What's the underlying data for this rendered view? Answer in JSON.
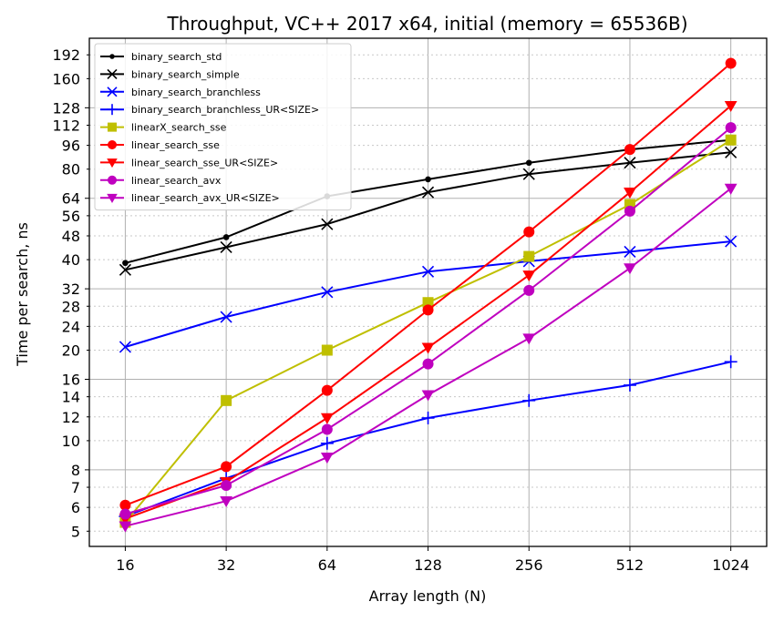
{
  "chart_data": {
    "type": "line",
    "title": "Throughput, VC++ 2017 x64, initial (memory = 65536B)",
    "xlabel": "Array length (N)",
    "ylabel": "Time per search, ns",
    "x_scale": "log2",
    "y_scale": "log",
    "grid": true,
    "legend_position": "top-left",
    "x": [
      16,
      32,
      64,
      128,
      256,
      512,
      1024
    ],
    "x_ticks": [
      "16",
      "32",
      "64",
      "128",
      "256",
      "512",
      "1024"
    ],
    "y_ticks_major": [
      8,
      16,
      32,
      64,
      128
    ],
    "y_ticks": [
      5,
      6,
      7,
      8,
      10,
      12,
      14,
      16,
      20,
      24,
      28,
      32,
      40,
      48,
      56,
      64,
      80,
      96,
      112,
      128,
      160,
      192
    ],
    "xlim": [
      12.5,
      1310
    ],
    "ylim": [
      4.45,
      218
    ],
    "series": [
      {
        "name": "binary_search_std",
        "color": "#000000",
        "marker": "dot",
        "values": [
          39,
          47.5,
          65,
          74,
          84,
          93,
          100
        ]
      },
      {
        "name": "binary_search_simple",
        "color": "#000000",
        "marker": "x",
        "values": [
          37,
          44,
          52.5,
          67,
          77,
          84,
          91
        ]
      },
      {
        "name": "binary_search_branchless",
        "color": "#0000ff",
        "marker": "x",
        "values": [
          20.5,
          25.8,
          31.2,
          36.5,
          39.5,
          42.5,
          46
        ]
      },
      {
        "name": "binary_search_branchless_UR<SIZE>",
        "color": "#0000ff",
        "marker": "plus",
        "values": [
          5.6,
          7.5,
          9.8,
          11.9,
          13.6,
          15.3,
          18.3
        ]
      },
      {
        "name": "linearX_search_sse",
        "color": "#bfbf00",
        "marker": "square",
        "values": [
          5.35,
          13.6,
          20,
          28.8,
          41,
          61,
          100
        ]
      },
      {
        "name": "linear_search_sse",
        "color": "#ff0000",
        "marker": "circle",
        "values": [
          6.1,
          8.2,
          14.7,
          27.2,
          49.5,
          93,
          180
        ]
      },
      {
        "name": "linear_search_sse_UR<SIZE>",
        "color": "#ff0000",
        "marker": "tri",
        "values": [
          5.5,
          7.3,
          11.9,
          20.4,
          35.5,
          67,
          130
        ]
      },
      {
        "name": "linear_search_avx",
        "color": "#bf00bf",
        "marker": "circle",
        "values": [
          5.7,
          7.1,
          10.9,
          18,
          31.6,
          58,
          110
        ]
      },
      {
        "name": "linear_search_avx_UR<SIZE>",
        "color": "#bf00bf",
        "marker": "tri",
        "values": [
          5.2,
          6.3,
          8.8,
          14.2,
          21.9,
          37.5,
          69
        ]
      }
    ]
  }
}
